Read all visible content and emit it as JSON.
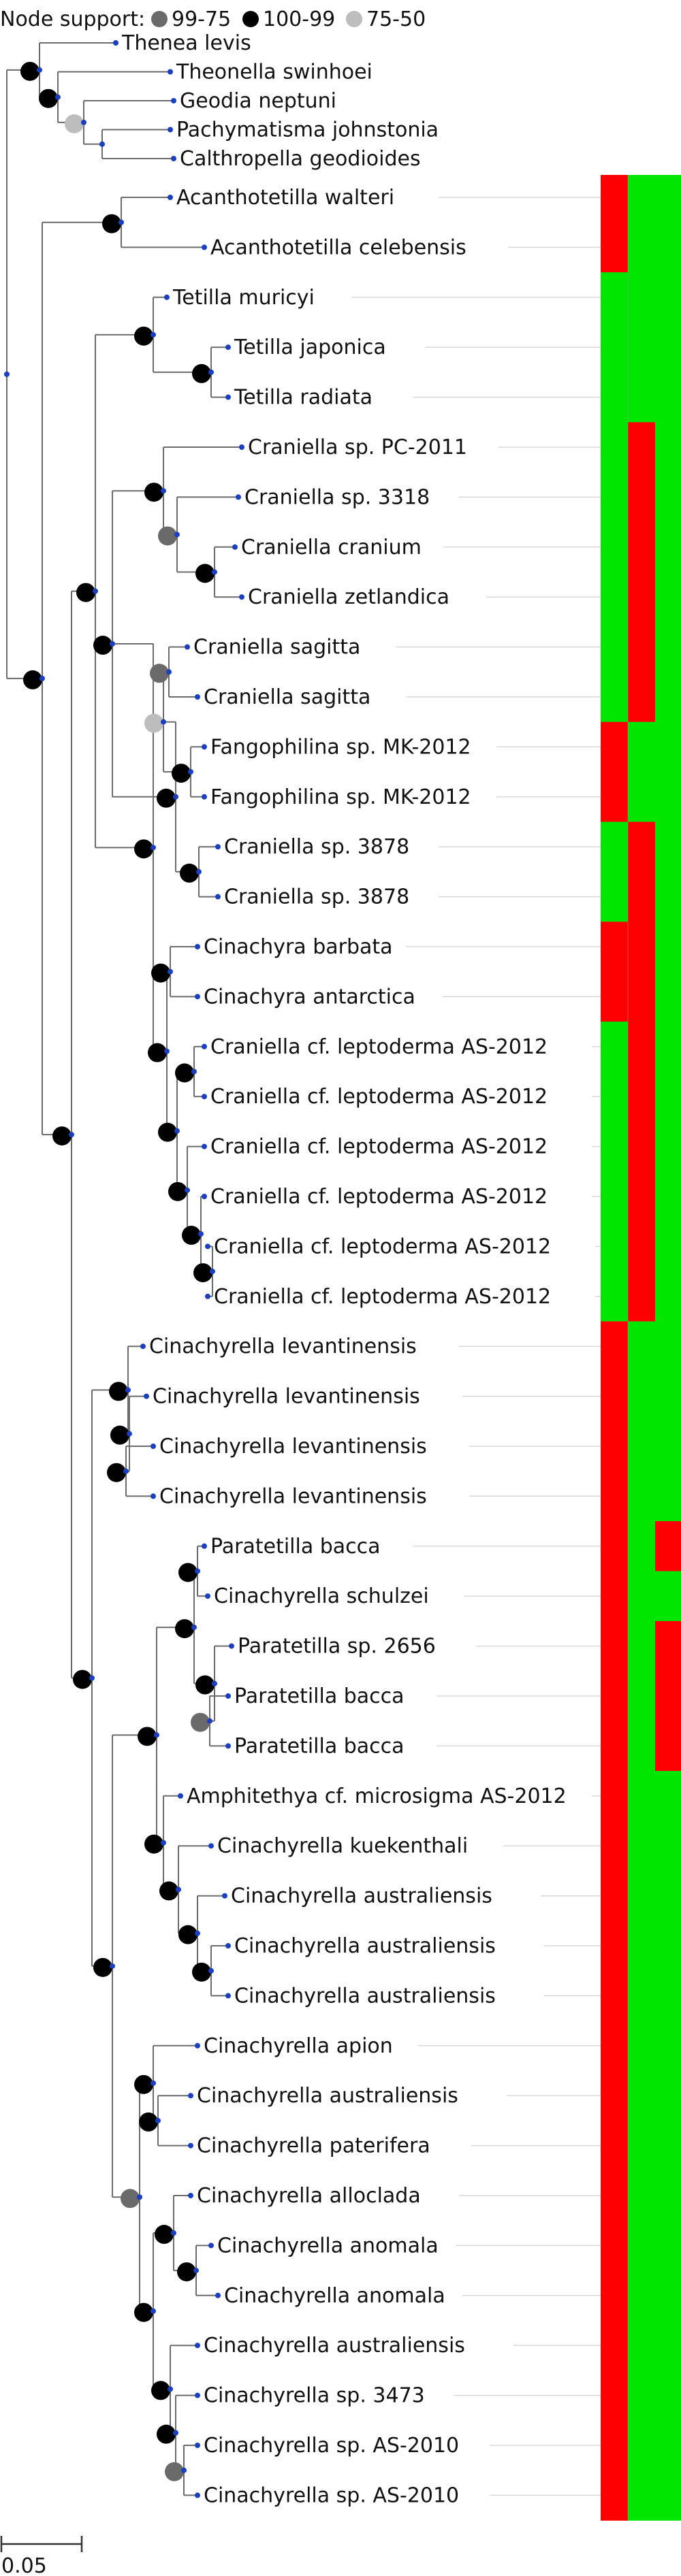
{
  "legend": {
    "title": "Node support:",
    "items": [
      {
        "label": "99-75",
        "color": "#6a6a6a"
      },
      {
        "label": "100-99",
        "color": "#000000"
      },
      {
        "label": "75-50",
        "color": "#bdbdbd"
      }
    ]
  },
  "scale_bar": {
    "label": "0.05"
  },
  "colors": {
    "present": "#00e600",
    "absent": "#ff0000",
    "tip": "#1a3fc0"
  },
  "taxa": [
    {
      "name": "Thenea levis"
    },
    {
      "name": "Theonella swinhoei"
    },
    {
      "name": "Geodia neptuni"
    },
    {
      "name": "Pachymatisma johnstonia"
    },
    {
      "name": "Calthropella geodioides"
    },
    {
      "name": "Acanthotetilla walteri",
      "traits": [
        "R",
        "G",
        "G"
      ]
    },
    {
      "name": "Acanthotetilla celebensis",
      "traits": [
        "R",
        "G",
        "G"
      ]
    },
    {
      "name": "Tetilla muricyi",
      "traits": [
        "G",
        "G",
        "G"
      ]
    },
    {
      "name": "Tetilla japonica",
      "traits": [
        "G",
        "G",
        "G"
      ]
    },
    {
      "name": "Tetilla radiata",
      "traits": [
        "G",
        "G",
        "G"
      ]
    },
    {
      "name": "Craniella sp. PC-2011",
      "traits": [
        "G",
        "R",
        "G"
      ]
    },
    {
      "name": "Craniella sp. 3318",
      "traits": [
        "G",
        "R",
        "G"
      ]
    },
    {
      "name": "Craniella cranium",
      "traits": [
        "G",
        "R",
        "G"
      ]
    },
    {
      "name": "Craniella zetlandica",
      "traits": [
        "G",
        "R",
        "G"
      ]
    },
    {
      "name": "Craniella sagitta",
      "traits": [
        "G",
        "R",
        "G"
      ]
    },
    {
      "name": "Craniella sagitta",
      "traits": [
        "G",
        "R",
        "G"
      ]
    },
    {
      "name": "Fangophilina sp. MK-2012",
      "traits": [
        "R",
        "G",
        "G"
      ]
    },
    {
      "name": "Fangophilina sp. MK-2012",
      "traits": [
        "R",
        "G",
        "G"
      ]
    },
    {
      "name": "Craniella sp. 3878",
      "traits": [
        "G",
        "R",
        "G"
      ]
    },
    {
      "name": "Craniella sp. 3878",
      "traits": [
        "G",
        "R",
        "G"
      ]
    },
    {
      "name": "Cinachyra barbata",
      "traits": [
        "R",
        "R",
        "G"
      ]
    },
    {
      "name": "Cinachyra antarctica",
      "traits": [
        "R",
        "R",
        "G"
      ]
    },
    {
      "name": "Craniella cf. leptoderma AS-2012",
      "traits": [
        "G",
        "R",
        "G"
      ]
    },
    {
      "name": "Craniella cf. leptoderma AS-2012",
      "traits": [
        "G",
        "R",
        "G"
      ]
    },
    {
      "name": "Craniella cf. leptoderma AS-2012",
      "traits": [
        "G",
        "R",
        "G"
      ]
    },
    {
      "name": "Craniella cf. leptoderma AS-2012",
      "traits": [
        "G",
        "R",
        "G"
      ]
    },
    {
      "name": "Craniella cf. leptoderma AS-2012",
      "traits": [
        "G",
        "R",
        "G"
      ]
    },
    {
      "name": "Craniella cf. leptoderma AS-2012",
      "traits": [
        "G",
        "R",
        "G"
      ]
    },
    {
      "name": "Cinachyrella levantinensis",
      "traits": [
        "R",
        "G",
        "G"
      ]
    },
    {
      "name": "Cinachyrella levantinensis",
      "traits": [
        "R",
        "G",
        "G"
      ]
    },
    {
      "name": "Cinachyrella levantinensis",
      "traits": [
        "R",
        "G",
        "G"
      ]
    },
    {
      "name": "Cinachyrella levantinensis",
      "traits": [
        "R",
        "G",
        "G"
      ]
    },
    {
      "name": "Paratetilla bacca",
      "traits": [
        "R",
        "G",
        "R"
      ]
    },
    {
      "name": "Cinachyrella schulzei",
      "traits": [
        "R",
        "G",
        "G"
      ]
    },
    {
      "name": "Paratetilla sp. 2656",
      "traits": [
        "R",
        "G",
        "R"
      ]
    },
    {
      "name": "Paratetilla bacca",
      "traits": [
        "R",
        "G",
        "R"
      ]
    },
    {
      "name": "Paratetilla bacca",
      "traits": [
        "R",
        "G",
        "R"
      ]
    },
    {
      "name": "Amphitethya cf. microsigma AS-2012",
      "traits": [
        "R",
        "G",
        "G"
      ]
    },
    {
      "name": "Cinachyrella kuekenthali",
      "traits": [
        "R",
        "G",
        "G"
      ]
    },
    {
      "name": "Cinachyrella australiensis",
      "traits": [
        "R",
        "G",
        "G"
      ]
    },
    {
      "name": "Cinachyrella australiensis",
      "traits": [
        "R",
        "G",
        "G"
      ]
    },
    {
      "name": "Cinachyrella australiensis",
      "traits": [
        "R",
        "G",
        "G"
      ]
    },
    {
      "name": "Cinachyrella apion",
      "traits": [
        "R",
        "G",
        "G"
      ]
    },
    {
      "name": "Cinachyrella australiensis",
      "traits": [
        "R",
        "G",
        "G"
      ]
    },
    {
      "name": "Cinachyrella paterifera",
      "traits": [
        "R",
        "G",
        "G"
      ]
    },
    {
      "name": "Cinachyrella alloclada",
      "traits": [
        "R",
        "G",
        "G"
      ]
    },
    {
      "name": "Cinachyrella anomala",
      "traits": [
        "R",
        "G",
        "G"
      ]
    },
    {
      "name": "Cinachyrella anomala",
      "traits": [
        "R",
        "G",
        "G"
      ]
    },
    {
      "name": "Cinachyrella australiensis",
      "traits": [
        "R",
        "G",
        "G"
      ]
    },
    {
      "name": "Cinachyrella sp. 3473",
      "traits": [
        "R",
        "G",
        "G"
      ]
    },
    {
      "name": "Cinachyrella sp. AS-2010",
      "traits": [
        "R",
        "G",
        "G"
      ]
    },
    {
      "name": "Cinachyrella sp. AS-2010",
      "traits": [
        "R",
        "G",
        "G"
      ]
    }
  ]
}
